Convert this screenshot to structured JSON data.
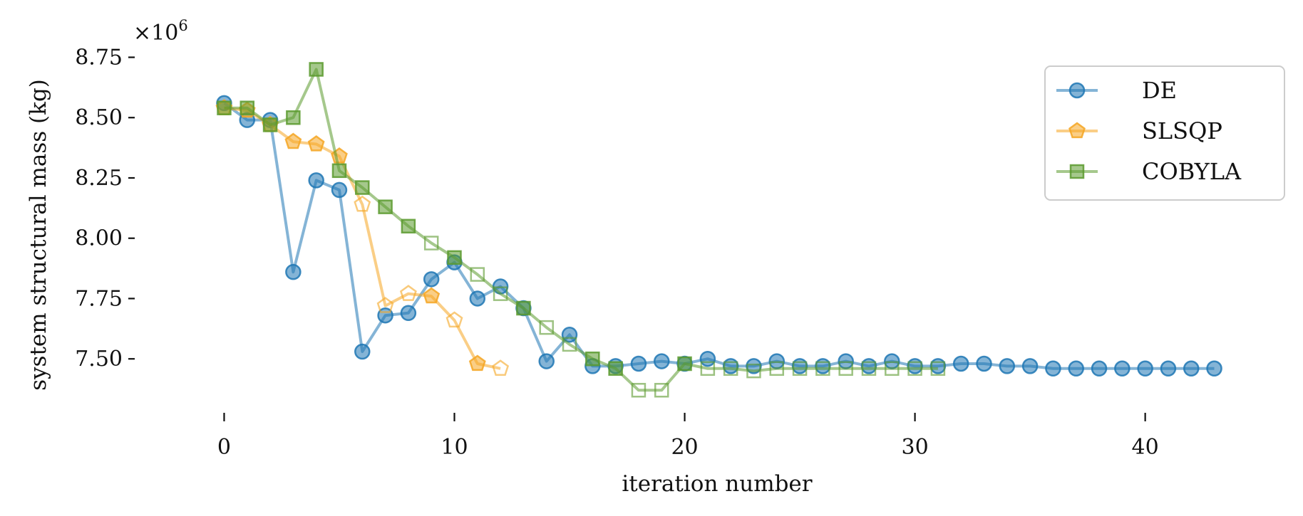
{
  "chart_data": {
    "type": "line",
    "xlabel": "iteration number",
    "ylabel": "system structural mass (kg)",
    "y_offset_label": "×10",
    "y_offset_exponent": "6",
    "xlim": [
      -1.5,
      44.5
    ],
    "ylim": [
      7.3,
      8.84
    ],
    "xticks": [
      0,
      10,
      20,
      30,
      40
    ],
    "yticks": [
      7.5,
      7.75,
      8.0,
      8.25,
      8.5,
      8.75
    ],
    "ytick_labels": [
      "7.50",
      "7.75",
      "8.00",
      "8.25",
      "8.50",
      "8.75"
    ],
    "grid": false,
    "legend_position": "top-right",
    "series": [
      {
        "name": "DE",
        "color": "#1f77b4",
        "marker": "circle",
        "x": [
          0,
          1,
          2,
          3,
          4,
          5,
          6,
          7,
          8,
          9,
          10,
          11,
          12,
          13,
          14,
          15,
          16,
          17,
          18,
          19,
          20,
          21,
          22,
          23,
          24,
          25,
          26,
          27,
          28,
          29,
          30,
          31,
          32,
          33,
          34,
          35,
          36,
          37,
          38,
          39,
          40,
          41,
          42,
          43
        ],
        "y": [
          8.56,
          8.49,
          8.49,
          7.86,
          8.24,
          8.2,
          7.53,
          7.68,
          7.69,
          7.83,
          7.9,
          7.75,
          7.8,
          7.71,
          7.49,
          7.6,
          7.47,
          7.47,
          7.48,
          7.49,
          7.48,
          7.5,
          7.47,
          7.47,
          7.49,
          7.47,
          7.47,
          7.49,
          7.47,
          7.49,
          7.47,
          7.47,
          7.48,
          7.48,
          7.47,
          7.47,
          7.46,
          7.46,
          7.46,
          7.46,
          7.46,
          7.46,
          7.46,
          7.46
        ],
        "hollow": []
      },
      {
        "name": "SLSQP",
        "color": "#f5a623",
        "marker": "pentagon",
        "x": [
          0,
          1,
          2,
          3,
          4,
          5,
          6,
          7,
          8,
          9,
          10,
          11,
          12
        ],
        "y": [
          8.54,
          8.53,
          8.47,
          8.4,
          8.39,
          8.34,
          8.14,
          7.72,
          7.77,
          7.76,
          7.66,
          7.48,
          7.46
        ],
        "hollow": [
          6,
          7,
          8,
          10,
          12
        ]
      },
      {
        "name": "COBYLA",
        "color": "#5b9a2e",
        "marker": "square",
        "x": [
          0,
          1,
          2,
          3,
          4,
          5,
          6,
          7,
          8,
          9,
          10,
          11,
          12,
          13,
          14,
          15,
          16,
          17,
          18,
          19,
          20,
          21,
          22,
          23,
          24,
          25,
          26,
          27,
          28,
          29,
          30,
          31
        ],
        "y": [
          8.54,
          8.54,
          8.47,
          8.5,
          8.7,
          8.28,
          8.21,
          8.13,
          8.05,
          7.98,
          7.92,
          7.85,
          7.77,
          7.71,
          7.63,
          7.56,
          7.5,
          7.46,
          7.37,
          7.37,
          7.48,
          7.46,
          7.46,
          7.45,
          7.46,
          7.46,
          7.46,
          7.46,
          7.46,
          7.46,
          7.46,
          7.46
        ],
        "hollow": [
          9,
          11,
          12,
          14,
          15,
          18,
          19,
          21,
          22,
          23,
          24,
          25,
          26,
          27,
          28,
          29,
          30,
          31
        ]
      }
    ]
  }
}
